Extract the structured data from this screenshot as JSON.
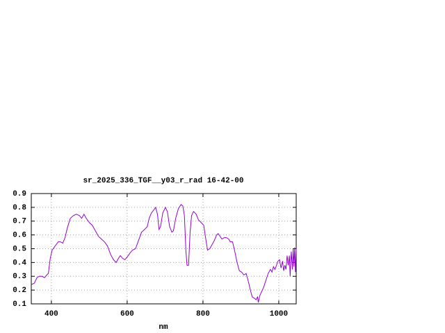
{
  "chart_data": {
    "type": "line",
    "title": "sr_2025_336_TGF__y03_r_rad 16-42-00",
    "xlabel": "nm",
    "x": [
      347,
      355,
      362,
      368,
      375,
      382,
      388,
      392,
      397,
      402,
      410,
      418,
      424,
      430,
      436,
      442,
      450,
      458,
      466,
      474,
      480,
      486,
      492,
      500,
      508,
      516,
      524,
      532,
      540,
      548,
      556,
      564,
      571,
      577,
      582,
      588,
      594,
      600,
      608,
      614,
      622,
      630,
      638,
      646,
      653,
      658,
      664,
      670,
      675,
      680,
      684,
      688,
      694,
      701,
      706,
      712,
      718,
      722,
      728,
      735,
      742,
      747,
      751,
      755,
      758,
      762,
      766,
      770,
      775,
      782,
      788,
      795,
      802,
      808,
      812,
      818,
      824,
      830,
      836,
      840,
      845,
      850,
      856,
      862,
      868,
      872,
      878,
      884,
      890,
      896,
      902,
      908,
      914,
      920,
      926,
      930,
      936,
      940,
      944,
      946,
      950,
      955,
      960,
      966,
      972,
      978,
      982,
      986,
      990,
      994,
      998,
      1002,
      1006,
      1010,
      1013,
      1016,
      1019,
      1022,
      1025,
      1028,
      1030,
      1033,
      1036,
      1038,
      1040,
      1042,
      1044,
      1046
    ],
    "series": [
      {
        "color": "#9400d3",
        "values": [
          0.24,
          0.25,
          0.29,
          0.3,
          0.3,
          0.29,
          0.31,
          0.32,
          0.43,
          0.49,
          0.52,
          0.55,
          0.55,
          0.54,
          0.58,
          0.65,
          0.72,
          0.74,
          0.75,
          0.74,
          0.72,
          0.75,
          0.72,
          0.69,
          0.67,
          0.63,
          0.59,
          0.57,
          0.55,
          0.52,
          0.46,
          0.42,
          0.4,
          0.43,
          0.45,
          0.43,
          0.42,
          0.44,
          0.47,
          0.49,
          0.5,
          0.56,
          0.62,
          0.64,
          0.66,
          0.72,
          0.76,
          0.78,
          0.8,
          0.75,
          0.64,
          0.66,
          0.76,
          0.8,
          0.77,
          0.66,
          0.62,
          0.63,
          0.72,
          0.79,
          0.82,
          0.81,
          0.74,
          0.48,
          0.38,
          0.38,
          0.62,
          0.74,
          0.77,
          0.75,
          0.71,
          0.69,
          0.67,
          0.56,
          0.49,
          0.5,
          0.53,
          0.56,
          0.6,
          0.61,
          0.59,
          0.57,
          0.58,
          0.58,
          0.57,
          0.55,
          0.55,
          0.48,
          0.4,
          0.34,
          0.33,
          0.31,
          0.32,
          0.26,
          0.19,
          0.15,
          0.14,
          0.13,
          0.15,
          0.11,
          0.16,
          0.19,
          0.22,
          0.27,
          0.32,
          0.35,
          0.33,
          0.37,
          0.35,
          0.38,
          0.41,
          0.42,
          0.36,
          0.41,
          0.34,
          0.38,
          0.35,
          0.45,
          0.38,
          0.45,
          0.3,
          0.48,
          0.35,
          0.5,
          0.37,
          0.51,
          0.33,
          0.5
        ]
      }
    ],
    "xlim": [
      347,
      1046
    ],
    "xticks": [
      400,
      600,
      800,
      1000
    ],
    "ylim": [
      0.1,
      0.9
    ],
    "yticks": [
      0.1,
      0.2,
      0.3,
      0.4,
      0.5,
      0.6,
      0.7,
      0.8,
      0.9
    ],
    "grid": true
  }
}
